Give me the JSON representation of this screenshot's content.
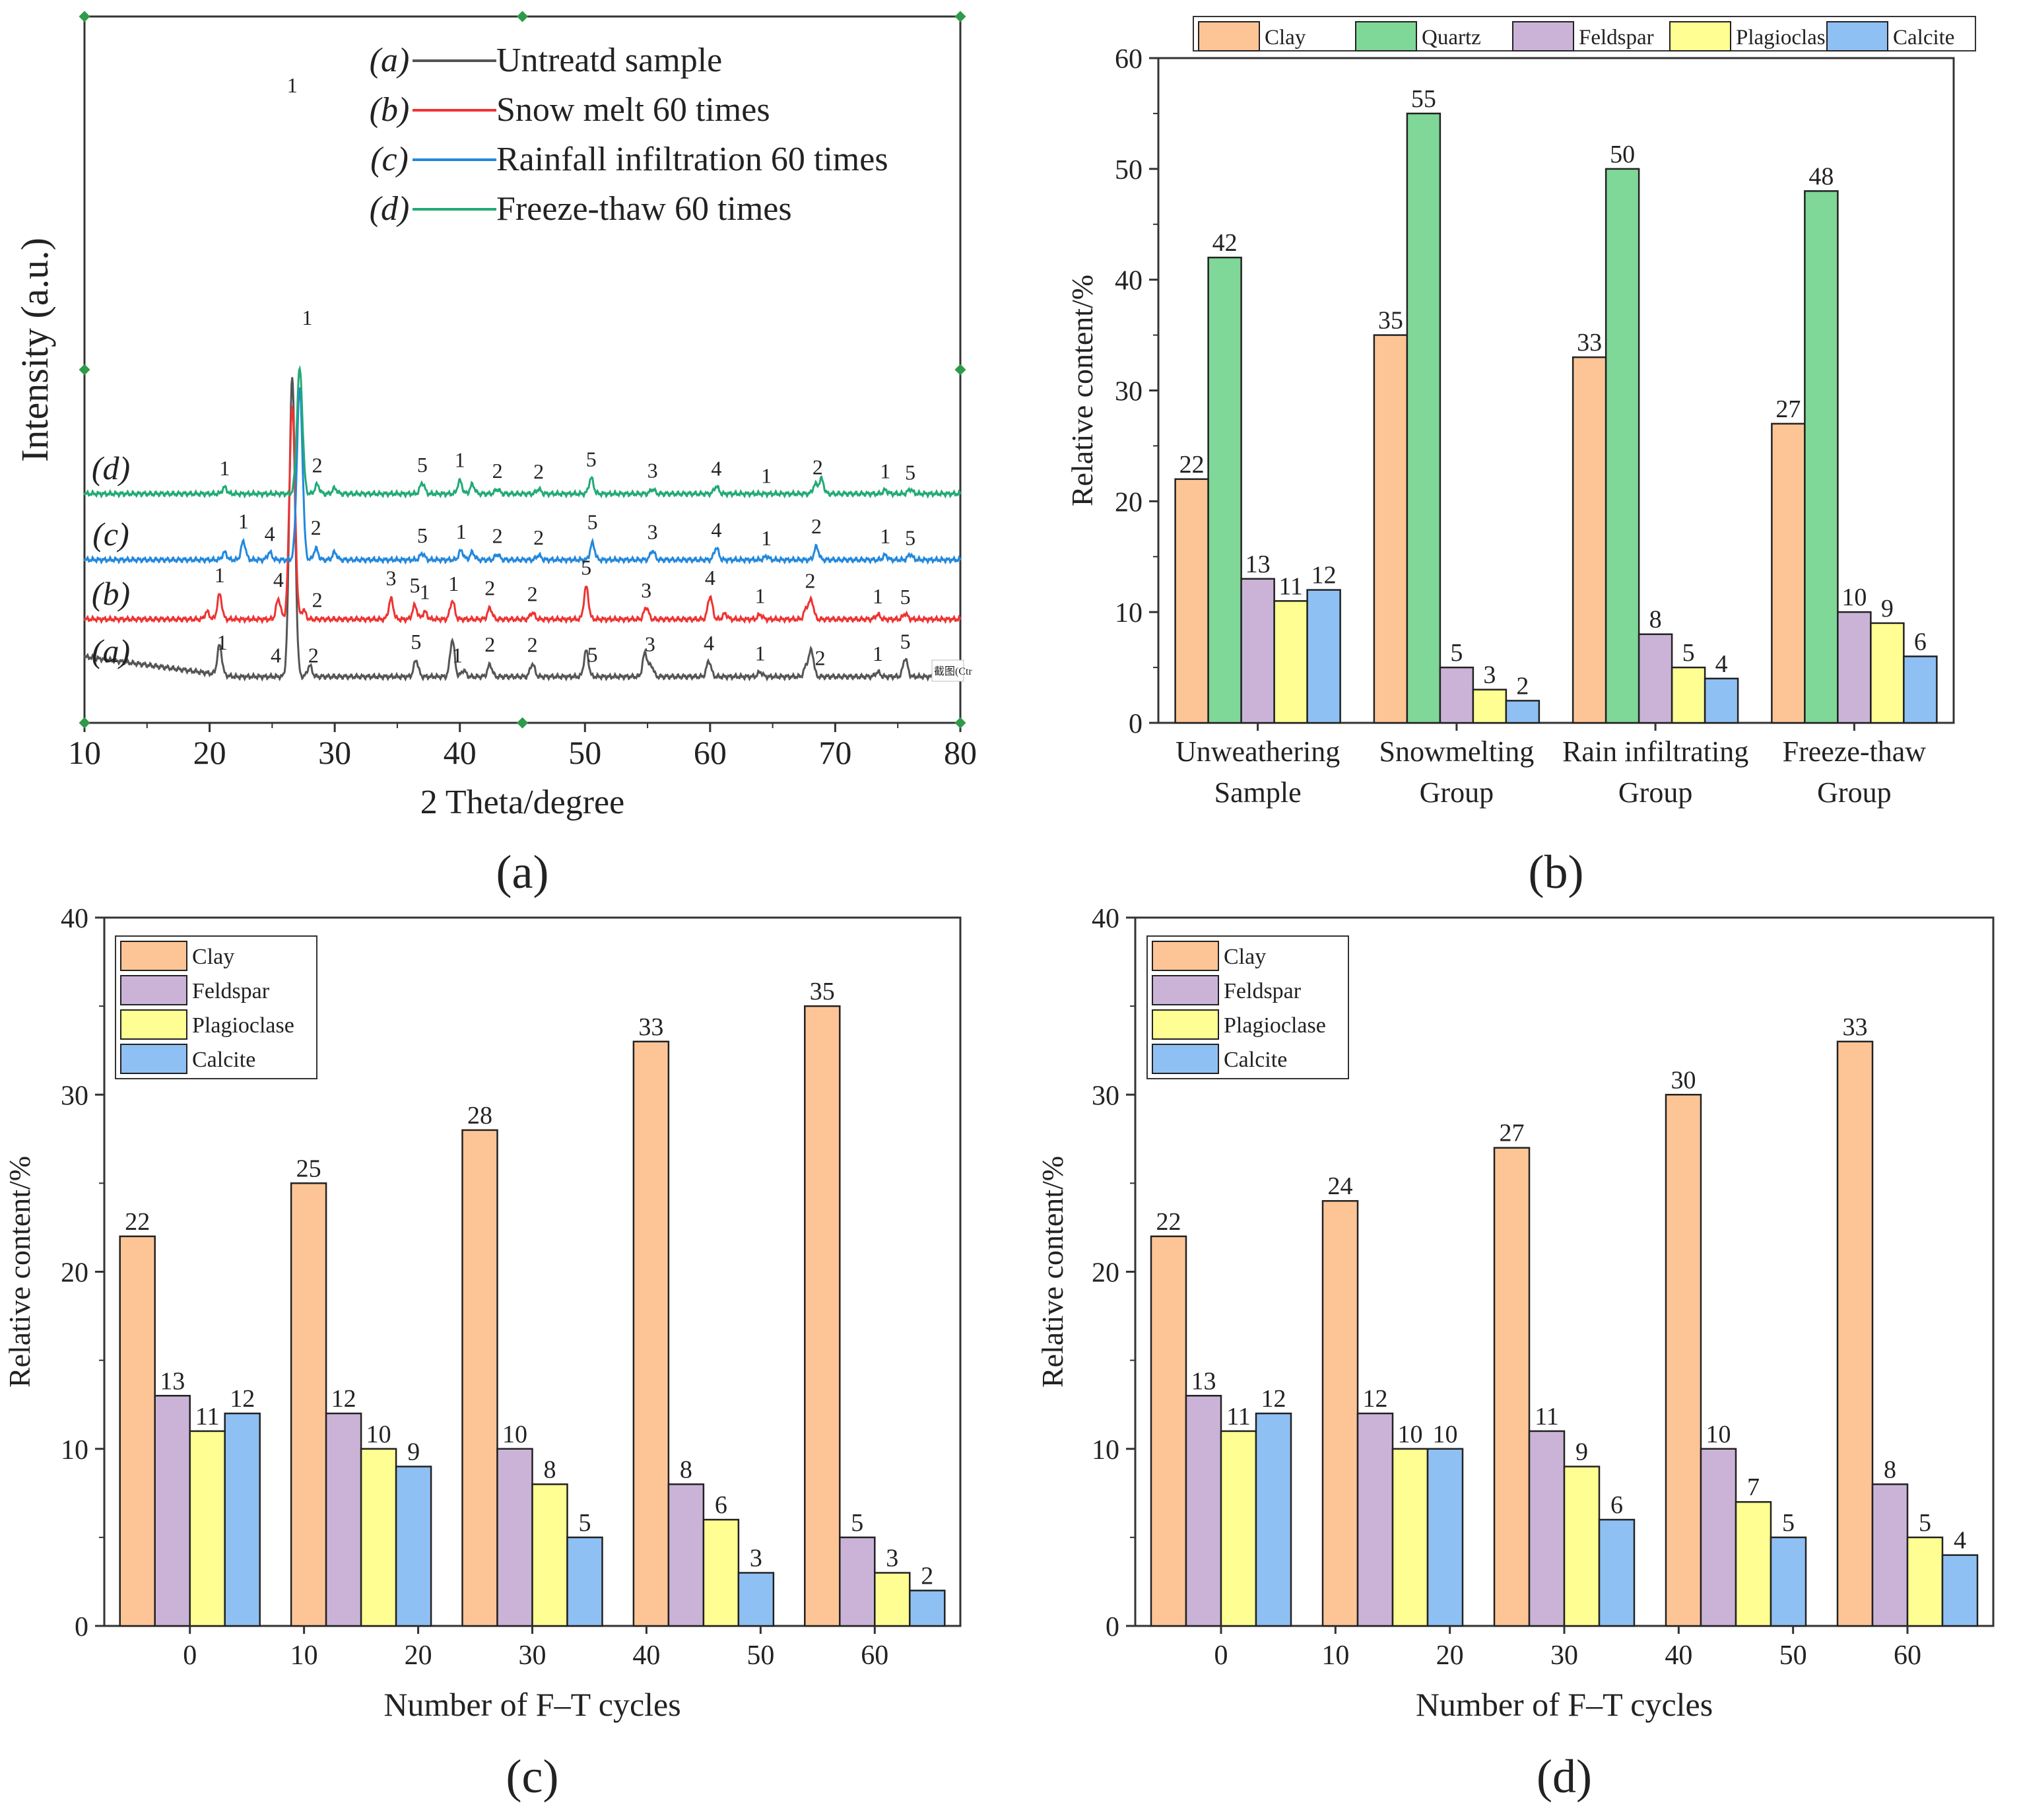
{
  "colors": {
    "clay": "#fdc596",
    "quartz": "#7fd798",
    "feldspar": "#cbb3d8",
    "plagioclase": "#fefe92",
    "calcite": "#8fc0f3",
    "xrd_a": "#555555",
    "xrd_b": "#ee3333",
    "xrd_c": "#2288dd",
    "xrd_d": "#22aa77"
  },
  "chart_data": [
    {
      "id": "a",
      "panel_label": "(a)",
      "type": "line",
      "title": "",
      "xlabel": "2 Theta/degree",
      "ylabel": "Intensity (a.u.)",
      "xlim": [
        10,
        80
      ],
      "xticks": [
        "10",
        "20",
        "30",
        "40",
        "50",
        "60",
        "70",
        "80"
      ],
      "legend": [
        {
          "key": "a",
          "mark": "(a)",
          "label": "Untreatd sample"
        },
        {
          "key": "b",
          "mark": "(b)",
          "label": "Snow melt 60 times"
        },
        {
          "key": "c",
          "mark": "(c)",
          "label": "Rainfall infiltration 60 times"
        },
        {
          "key": "d",
          "mark": "(d)",
          "label": "Freeze-thaw 60 times"
        }
      ],
      "curve_labels": [
        "(a)",
        "(b)",
        "(c)",
        "(d)"
      ],
      "series": [
        {
          "key": "a",
          "peaks": [
            [
              20.8,
              0.32
            ],
            [
              26.6,
              3.25
            ],
            [
              28.0,
              0.12
            ],
            [
              36.5,
              0.18
            ],
            [
              39.4,
              0.4
            ],
            [
              40.3,
              0.07
            ],
            [
              42.4,
              0.13
            ],
            [
              45.8,
              0.14
            ],
            [
              50.1,
              0.28
            ],
            [
              54.8,
              0.26
            ],
            [
              55.3,
              0.12
            ],
            [
              59.9,
              0.17
            ],
            [
              64.0,
              0.05
            ],
            [
              67.7,
              0.12
            ],
            [
              68.1,
              0.28
            ],
            [
              73.4,
              0.05
            ],
            [
              75.6,
              0.2
            ]
          ]
        },
        {
          "key": "b",
          "peaks": [
            [
              19.8,
              0.08
            ],
            [
              20.8,
              0.27
            ],
            [
              25.5,
              0.22
            ],
            [
              26.6,
              2.32
            ],
            [
              27.5,
              0.1
            ],
            [
              34.5,
              0.22
            ],
            [
              36.4,
              0.15
            ],
            [
              37.2,
              0.08
            ],
            [
              39.4,
              0.2
            ],
            [
              42.4,
              0.12
            ],
            [
              45.8,
              0.07
            ],
            [
              50.1,
              0.35
            ],
            [
              54.9,
              0.13
            ],
            [
              60.0,
              0.25
            ],
            [
              61.2,
              0.06
            ],
            [
              64.0,
              0.05
            ],
            [
              67.7,
              0.12
            ],
            [
              68.1,
              0.2
            ],
            [
              73.4,
              0.05
            ],
            [
              75.6,
              0.06
            ]
          ]
        },
        {
          "key": "c",
          "peaks": [
            [
              21.2,
              0.08
            ],
            [
              22.7,
              0.2
            ],
            [
              24.8,
              0.08
            ],
            [
              27.2,
              1.86
            ],
            [
              28.5,
              0.12
            ],
            [
              30.0,
              0.08
            ],
            [
              37.0,
              0.07
            ],
            [
              40.1,
              0.1
            ],
            [
              41.0,
              0.08
            ],
            [
              43.0,
              0.06
            ],
            [
              46.3,
              0.05
            ],
            [
              50.6,
              0.18
            ],
            [
              55.4,
              0.1
            ],
            [
              60.5,
              0.13
            ],
            [
              64.5,
              0.04
            ],
            [
              68.5,
              0.14
            ],
            [
              74.0,
              0.05
            ],
            [
              76.0,
              0.06
            ]
          ]
        },
        {
          "key": "d",
          "peaks": [
            [
              21.2,
              0.07
            ],
            [
              27.2,
              1.35
            ],
            [
              28.6,
              0.1
            ],
            [
              30.0,
              0.06
            ],
            [
              37.0,
              0.12
            ],
            [
              40.0,
              0.14
            ],
            [
              41.0,
              0.1
            ],
            [
              43.0,
              0.05
            ],
            [
              46.3,
              0.05
            ],
            [
              50.5,
              0.17
            ],
            [
              55.4,
              0.05
            ],
            [
              60.5,
              0.08
            ],
            [
              68.4,
              0.1
            ],
            [
              68.9,
              0.16
            ],
            [
              74.0,
              0.04
            ],
            [
              76.0,
              0.05
            ]
          ]
        }
      ],
      "peak_labels": [
        {
          "series": "d",
          "theta": 21.2,
          "text": "1"
        },
        {
          "series": "d",
          "theta": 27.8,
          "text": "1"
        },
        {
          "series": "d",
          "theta": 28.6,
          "text": "2"
        },
        {
          "series": "d",
          "theta": 37.0,
          "text": "5"
        },
        {
          "series": "d",
          "theta": 40.0,
          "text": "1"
        },
        {
          "series": "d",
          "theta": 43.0,
          "text": "2"
        },
        {
          "series": "d",
          "theta": 46.3,
          "text": "2"
        },
        {
          "series": "d",
          "theta": 50.5,
          "text": "5"
        },
        {
          "series": "d",
          "theta": 55.4,
          "text": "3"
        },
        {
          "series": "d",
          "theta": 60.5,
          "text": "4"
        },
        {
          "series": "d",
          "theta": 64.5,
          "text": "1"
        },
        {
          "series": "d",
          "theta": 68.6,
          "text": "2"
        },
        {
          "series": "d",
          "theta": 74.0,
          "text": "1"
        },
        {
          "series": "d",
          "theta": 76.0,
          "text": "5"
        },
        {
          "series": "c",
          "theta": 22.7,
          "text": "1"
        },
        {
          "series": "c",
          "theta": 24.8,
          "text": "4"
        },
        {
          "series": "c",
          "theta": 28.5,
          "text": "2"
        },
        {
          "series": "c",
          "theta": 37.0,
          "text": "5"
        },
        {
          "series": "c",
          "theta": 40.1,
          "text": "1"
        },
        {
          "series": "c",
          "theta": 43.0,
          "text": "2"
        },
        {
          "series": "c",
          "theta": 46.3,
          "text": "2"
        },
        {
          "series": "c",
          "theta": 50.6,
          "text": "5"
        },
        {
          "series": "c",
          "theta": 55.4,
          "text": "3"
        },
        {
          "series": "c",
          "theta": 60.5,
          "text": "4"
        },
        {
          "series": "c",
          "theta": 64.5,
          "text": "1"
        },
        {
          "series": "c",
          "theta": 68.5,
          "text": "2"
        },
        {
          "series": "c",
          "theta": 74.0,
          "text": "1"
        },
        {
          "series": "c",
          "theta": 76.0,
          "text": "5"
        },
        {
          "series": "b",
          "theta": 20.8,
          "text": "1"
        },
        {
          "series": "b",
          "theta": 25.5,
          "text": "4"
        },
        {
          "series": "b",
          "theta": 28.6,
          "text": "2"
        },
        {
          "series": "b",
          "theta": 34.5,
          "text": "3"
        },
        {
          "series": "b",
          "theta": 36.4,
          "text": "5"
        },
        {
          "series": "b",
          "theta": 37.2,
          "text": "1"
        },
        {
          "series": "b",
          "theta": 39.5,
          "text": "1"
        },
        {
          "series": "b",
          "theta": 42.4,
          "text": "2"
        },
        {
          "series": "b",
          "theta": 45.8,
          "text": "2"
        },
        {
          "series": "b",
          "theta": 50.1,
          "text": "5"
        },
        {
          "series": "b",
          "theta": 54.9,
          "text": "3"
        },
        {
          "series": "b",
          "theta": 60.0,
          "text": "4"
        },
        {
          "series": "b",
          "theta": 64.0,
          "text": "1"
        },
        {
          "series": "b",
          "theta": 68.0,
          "text": "2"
        },
        {
          "series": "b",
          "theta": 73.4,
          "text": "1"
        },
        {
          "series": "b",
          "theta": 75.6,
          "text": "5"
        },
        {
          "series": "a",
          "theta": 21.0,
          "text": "1"
        },
        {
          "series": "a",
          "theta": 25.3,
          "text": "4"
        },
        {
          "series": "a",
          "theta": 28.3,
          "text": "2"
        },
        {
          "series": "a",
          "theta": 36.5,
          "text": "5"
        },
        {
          "series": "a",
          "theta": 39.8,
          "text": "1"
        },
        {
          "series": "a",
          "theta": 42.4,
          "text": "2"
        },
        {
          "series": "a",
          "theta": 45.8,
          "text": "2"
        },
        {
          "series": "a",
          "theta": 50.6,
          "text": "5"
        },
        {
          "series": "a",
          "theta": 55.2,
          "text": "3"
        },
        {
          "series": "a",
          "theta": 59.9,
          "text": "4"
        },
        {
          "series": "a",
          "theta": 64.0,
          "text": "1"
        },
        {
          "series": "a",
          "theta": 68.8,
          "text": "2"
        },
        {
          "series": "a",
          "theta": 73.4,
          "text": "1"
        },
        {
          "series": "a",
          "theta": 75.6,
          "text": "5"
        },
        {
          "series": "a",
          "theta": 26.6,
          "text": "1",
          "top": true
        }
      ],
      "watermark": "截图(Ctr"
    },
    {
      "id": "b",
      "panel_label": "(b)",
      "type": "bar",
      "title": "",
      "xlabel": "",
      "ylabel": "Relative content/%",
      "ylim": [
        0,
        60
      ],
      "yticks": [
        "0",
        "10",
        "20",
        "30",
        "40",
        "50",
        "60"
      ],
      "categories": [
        [
          "Unweathering",
          "Sample"
        ],
        [
          "Snowmelting",
          "Group"
        ],
        [
          "Rain  infiltrating",
          "Group"
        ],
        [
          "Freeze-thaw",
          "Group"
        ]
      ],
      "series": [
        {
          "name": "Clay",
          "key": "clay",
          "values": [
            22,
            35,
            33,
            27
          ]
        },
        {
          "name": "Quartz",
          "key": "quartz",
          "values": [
            42,
            55,
            50,
            48
          ]
        },
        {
          "name": "Feldspar",
          "key": "feldspar",
          "values": [
            13,
            5,
            8,
            10
          ]
        },
        {
          "name": "Plagioclase",
          "key": "plagioclase",
          "values": [
            11,
            3,
            5,
            9
          ]
        },
        {
          "name": "Calcite",
          "key": "calcite",
          "values": [
            12,
            2,
            4,
            6
          ]
        }
      ],
      "legend_position": "top"
    },
    {
      "id": "c",
      "panel_label": "(c)",
      "type": "bar",
      "title": "",
      "xlabel": "Number of F–T cycles",
      "ylabel": "Relative content/%",
      "ylim": [
        0,
        40
      ],
      "yticks": [
        "0",
        "10",
        "20",
        "30",
        "40"
      ],
      "xticks": [
        "0",
        "10",
        "20",
        "30",
        "40",
        "50",
        "60"
      ],
      "categories": [
        "0",
        "20",
        "30",
        "40",
        "60"
      ],
      "series": [
        {
          "name": "Clay",
          "key": "clay",
          "values": [
            22,
            25,
            28,
            33,
            35
          ]
        },
        {
          "name": "Feldspar",
          "key": "feldspar",
          "values": [
            13,
            12,
            10,
            8,
            5
          ]
        },
        {
          "name": "Plagioclase",
          "key": "plagioclase",
          "values": [
            11,
            10,
            8,
            6,
            3
          ]
        },
        {
          "name": "Calcite",
          "key": "calcite",
          "values": [
            12,
            9,
            5,
            3,
            2
          ]
        }
      ],
      "legend_position": "top-left"
    },
    {
      "id": "d",
      "panel_label": "(d)",
      "type": "bar",
      "title": "",
      "xlabel": "Number of F–T cycles",
      "ylabel": "Relative content/%",
      "ylim": [
        0,
        40
      ],
      "yticks": [
        "0",
        "10",
        "20",
        "30",
        "40"
      ],
      "xticks": [
        "0",
        "10",
        "20",
        "30",
        "40",
        "50",
        "60"
      ],
      "categories": [
        "0",
        "20",
        "30",
        "40",
        "60"
      ],
      "series": [
        {
          "name": "Clay",
          "key": "clay",
          "values": [
            22,
            24,
            27,
            30,
            33
          ]
        },
        {
          "name": "Feldspar",
          "key": "feldspar",
          "values": [
            13,
            12,
            11,
            10,
            8
          ]
        },
        {
          "name": "Plagioclase",
          "key": "plagioclase",
          "values": [
            11,
            10,
            9,
            7,
            5
          ]
        },
        {
          "name": "Calcite",
          "key": "calcite",
          "values": [
            12,
            10,
            6,
            5,
            4
          ]
        }
      ],
      "legend_position": "top-left"
    }
  ]
}
